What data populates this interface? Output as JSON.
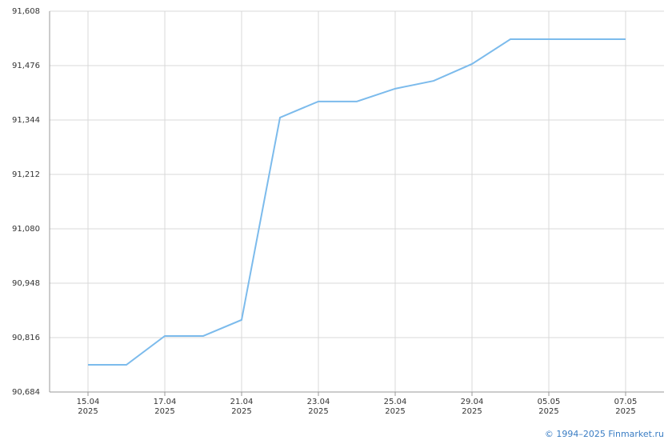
{
  "chart_data": {
    "type": "line",
    "categories": [
      [
        "15.04",
        "2025"
      ],
      null,
      [
        "17.04",
        "2025"
      ],
      null,
      [
        "21.04",
        "2025"
      ],
      null,
      [
        "23.04",
        "2025"
      ],
      null,
      [
        "25.04",
        "2025"
      ],
      null,
      [
        "29.04",
        "2025"
      ],
      null,
      [
        "05.05",
        "2025"
      ],
      null,
      [
        "07.05",
        "2025"
      ]
    ],
    "series": [
      {
        "color": "#7cbbec",
        "values": [
          90.75,
          90.75,
          90.82,
          90.82,
          90.859,
          91.35,
          91.389,
          91.389,
          91.42,
          91.439,
          91.48,
          91.54,
          91.54,
          91.54,
          91.54
        ]
      }
    ],
    "ylim": [
      90.684,
      91.608
    ],
    "yticks": [
      {
        "value": 90.684,
        "label": "90,684"
      },
      {
        "value": 90.816,
        "label": "90,816"
      },
      {
        "value": 90.948,
        "label": "90,948"
      },
      {
        "value": 91.08,
        "label": "91,080"
      },
      {
        "value": 91.212,
        "label": "91,212"
      },
      {
        "value": 91.344,
        "label": "91,344"
      },
      {
        "value": 91.476,
        "label": "91,476"
      },
      {
        "value": 91.608,
        "label": "91,608"
      }
    ],
    "grid": true
  },
  "footer": "© 1994–2025 Finmarket.ru"
}
